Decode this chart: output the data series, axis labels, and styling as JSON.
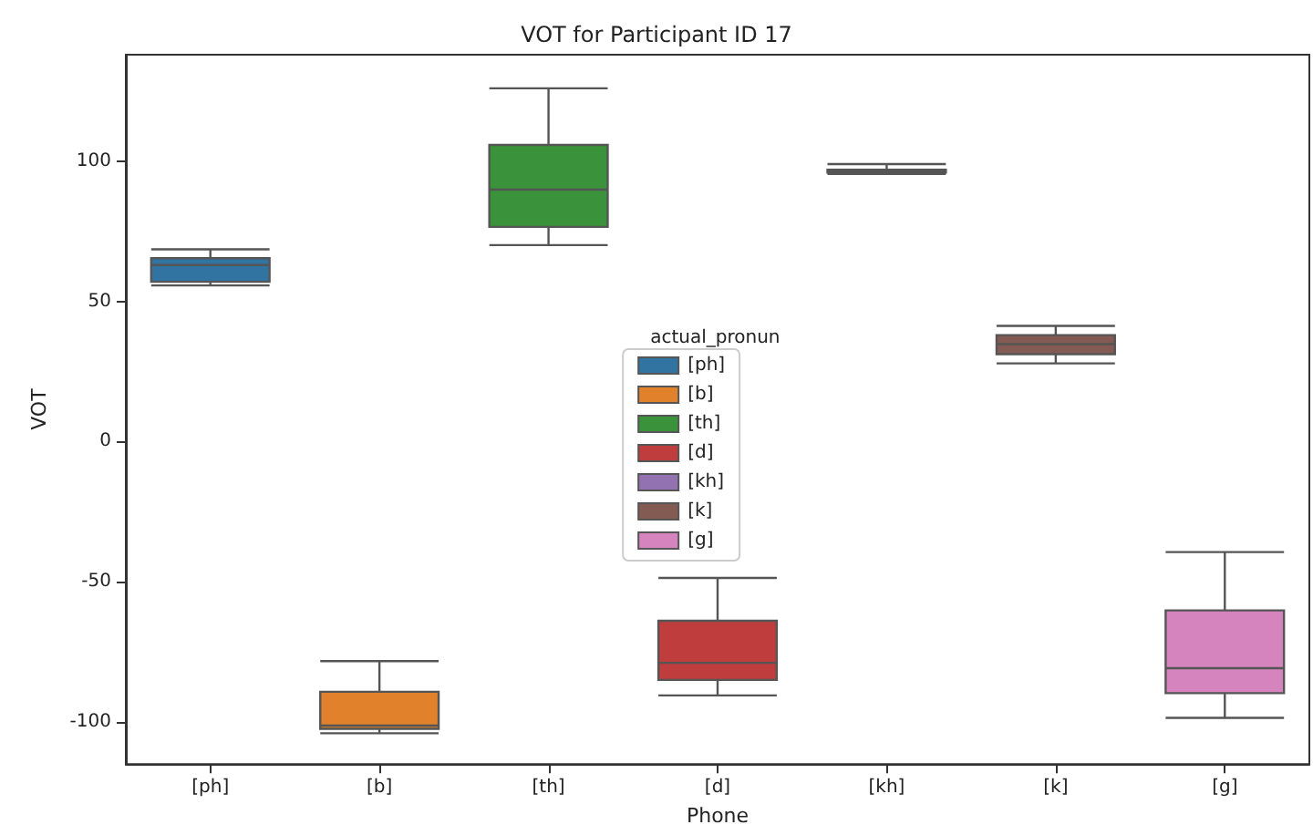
{
  "chart_data": {
    "type": "box",
    "title": "VOT for Participant ID 17",
    "xlabel": "Phone",
    "ylabel": "VOT",
    "legend_title": "actual_pronun",
    "categories": [
      "[ph]",
      "[b]",
      "[th]",
      "[d]",
      "[kh]",
      "[k]",
      "[g]"
    ],
    "ylim": [
      -115,
      138
    ],
    "yticks": [
      -100,
      -50,
      0,
      50,
      100
    ],
    "grid": false,
    "legend": "center",
    "series": [
      {
        "name": "[ph]",
        "color": "#3274a1",
        "boxes": [
          {
            "low": 55.7,
            "q1": 57,
            "median": 63,
            "q3": 65.4,
            "high": 68.6
          },
          null,
          null,
          null,
          null,
          null,
          null
        ]
      },
      {
        "name": "[b]",
        "color": "#e1812c",
        "boxes": [
          null,
          {
            "low": -104,
            "q1": -102.4,
            "median": -101.3,
            "q3": -89.2,
            "high": -78.3
          },
          null,
          null,
          null,
          null,
          null
        ]
      },
      {
        "name": "[th]",
        "color": "#3a923a",
        "boxes": [
          null,
          null,
          {
            "low": 70.1,
            "q1": 76.6,
            "median": 89.9,
            "q3": 105.8,
            "high": 126
          },
          null,
          null,
          null,
          null
        ]
      },
      {
        "name": "[d]",
        "color": "#c03d3e",
        "boxes": [
          null,
          null,
          null,
          {
            "low": -90.5,
            "q1": -85,
            "median": -78.9,
            "q3": -63.9,
            "high": -48.6
          },
          null,
          null,
          null
        ]
      },
      {
        "name": "[kh]",
        "color": "#9372b2",
        "boxes": [
          null,
          null,
          null,
          null,
          {
            "low": 95.5,
            "q1": 96,
            "median": 96.5,
            "q3": 97,
            "high": 99
          },
          null,
          null
        ]
      },
      {
        "name": "[k]",
        "color": "#845b53",
        "boxes": [
          null,
          null,
          null,
          null,
          null,
          {
            "low": 27.9,
            "q1": 31.2,
            "median": 34.8,
            "q3": 38,
            "high": 41.3
          },
          null
        ]
      },
      {
        "name": "[g]",
        "color": "#d684bd",
        "boxes": [
          null,
          null,
          null,
          null,
          null,
          null,
          {
            "low": -98.5,
            "q1": -89.7,
            "median": -80.8,
            "q3": -60.2,
            "high": -39.4
          }
        ]
      }
    ]
  }
}
